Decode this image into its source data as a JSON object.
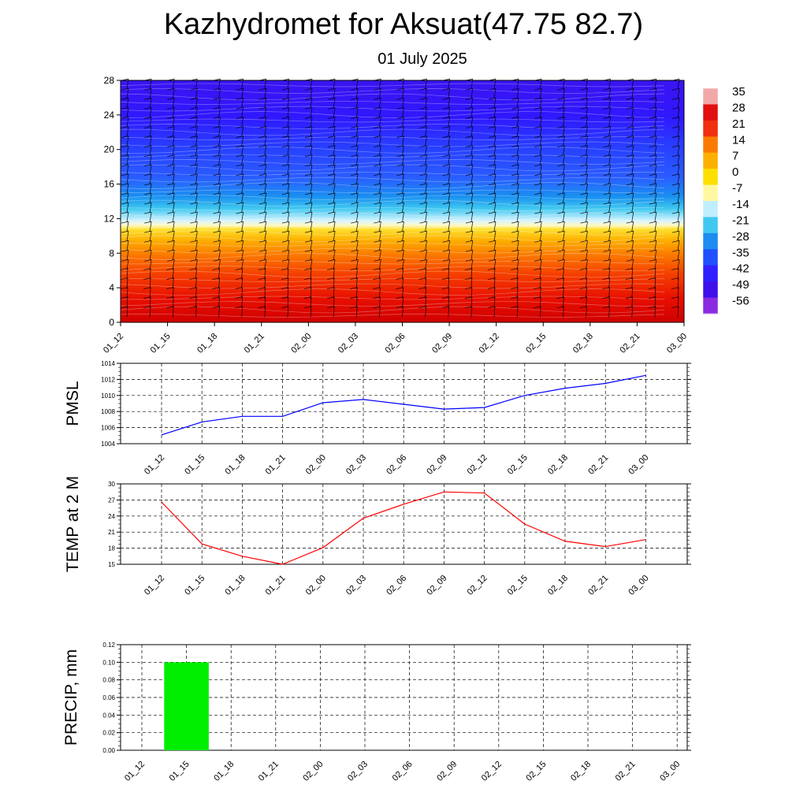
{
  "header": {
    "title": "Kazhydromet for Aksuat(47.75 82.7)",
    "subtitle": "01 July 2025"
  },
  "chart_data": [
    {
      "type": "heatmap",
      "title": "",
      "ylabel": "",
      "categories": [
        "01_12",
        "01_15",
        "01_18",
        "01_21",
        "02_00",
        "02_03",
        "02_06",
        "02_09",
        "02_12",
        "02_15",
        "02_18",
        "02_21",
        "03_00"
      ],
      "ylim": [
        0,
        28
      ],
      "yticks": [
        "0",
        "4",
        "8",
        "12",
        "16",
        "20",
        "24",
        "28"
      ],
      "colorbar_labels": [
        "35",
        "28",
        "21",
        "14",
        "7",
        "0",
        "-7",
        "-14",
        "-21",
        "-28",
        "-35",
        "-42",
        "-49",
        "-56"
      ],
      "colorbar_colors": [
        "#f3a8a8",
        "#e01010",
        "#f03010",
        "#fb7a00",
        "#fdb000",
        "#fde000",
        "#fff8a0",
        "#bfefff",
        "#40c8f0",
        "#1c8cf0",
        "#2050ff",
        "#3020ff",
        "#4010e8",
        "#8a2be2"
      ],
      "overlay": "wind barbs"
    },
    {
      "type": "line",
      "ylabel": "PMSL",
      "categories": [
        "01_12",
        "01_15",
        "01_18",
        "01_21",
        "02_00",
        "02_03",
        "02_06",
        "02_09",
        "02_12",
        "02_15",
        "02_18",
        "02_21",
        "03_00"
      ],
      "series": [
        {
          "values": [
            1005.1,
            1006.7,
            1007.4,
            1007.4,
            1009.1,
            1009.5,
            1008.9,
            1008.3,
            1008.5,
            1010.0,
            1010.9,
            1011.5,
            1012.5
          ],
          "color": "#0000ff"
        }
      ],
      "ylim": [
        1004,
        1014
      ],
      "yticks": [
        "1004",
        "1006",
        "1008",
        "1010",
        "1012",
        "1014"
      ],
      "grid": true
    },
    {
      "type": "line",
      "ylabel": "TEMP at 2 M",
      "categories": [
        "01_12",
        "01_15",
        "01_18",
        "01_21",
        "02_00",
        "02_03",
        "02_06",
        "02_09",
        "02_12",
        "02_15",
        "02_18",
        "02_21",
        "03_00"
      ],
      "series": [
        {
          "values": [
            26.6,
            18.8,
            16.5,
            15.0,
            18.1,
            23.6,
            26.2,
            28.5,
            28.3,
            22.5,
            19.3,
            18.3,
            19.6
          ],
          "color": "#ff0000"
        }
      ],
      "ylim": [
        15,
        30
      ],
      "yticks": [
        "15",
        "18",
        "21",
        "24",
        "27",
        "30"
      ],
      "grid": true
    },
    {
      "type": "bar",
      "ylabel": "PRECIP, mm",
      "categories": [
        "01_12",
        "01_15",
        "01_18",
        "01_21",
        "02_00",
        "02_03",
        "02_06",
        "02_09",
        "02_12",
        "02_15",
        "02_18",
        "02_21",
        "03_00"
      ],
      "values": [
        0,
        0.1,
        0,
        0,
        0,
        0,
        0,
        0,
        0,
        0,
        0,
        0,
        0
      ],
      "color": "#00ee00",
      "ylim": [
        0,
        0.12
      ],
      "yticks": [
        "0.00",
        "0.02",
        "0.04",
        "0.06",
        "0.08",
        "0.10",
        "0.12"
      ],
      "grid": true
    }
  ]
}
